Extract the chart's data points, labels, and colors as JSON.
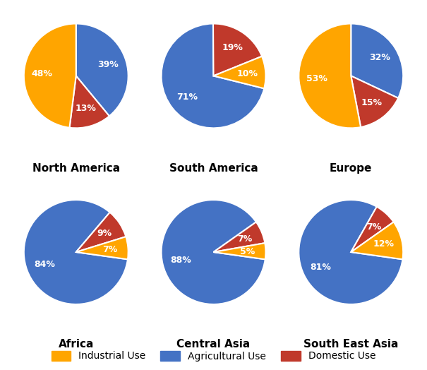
{
  "charts": [
    {
      "title": "North America",
      "values": [
        39,
        13,
        48
      ],
      "colors": [
        "#4472C4",
        "#C0392B",
        "#FFA500"
      ],
      "startangle": 90
    },
    {
      "title": "South America",
      "values": [
        71,
        19,
        10
      ],
      "colors": [
        "#4472C4",
        "#C0392B",
        "#FFA500"
      ],
      "startangle": -10
    },
    {
      "title": "Europe",
      "values": [
        32,
        15,
        53
      ],
      "colors": [
        "#4472C4",
        "#C0392B",
        "#FFA500"
      ],
      "startangle": 90
    },
    {
      "title": "Africa",
      "values": [
        84,
        9,
        7
      ],
      "colors": [
        "#4472C4",
        "#C0392B",
        "#FFA500"
      ],
      "startangle": -5
    },
    {
      "title": "Central Asia",
      "values": [
        88,
        7,
        5
      ],
      "colors": [
        "#4472C4",
        "#C0392B",
        "#FFA500"
      ],
      "startangle": -5
    },
    {
      "title": "South East Asia",
      "values": [
        81,
        7,
        12
      ],
      "colors": [
        "#4472C4",
        "#C0392B",
        "#FFA500"
      ],
      "startangle": -5
    }
  ],
  "legend_labels": [
    "Industrial Use",
    "Agricultural Use",
    "Domestic Use"
  ],
  "legend_colors": [
    "#FFA500",
    "#4472C4",
    "#C0392B"
  ],
  "background_color": "#FFFFFF",
  "title_fontsize": 11,
  "label_fontsize": 9,
  "title_color": "#000000"
}
